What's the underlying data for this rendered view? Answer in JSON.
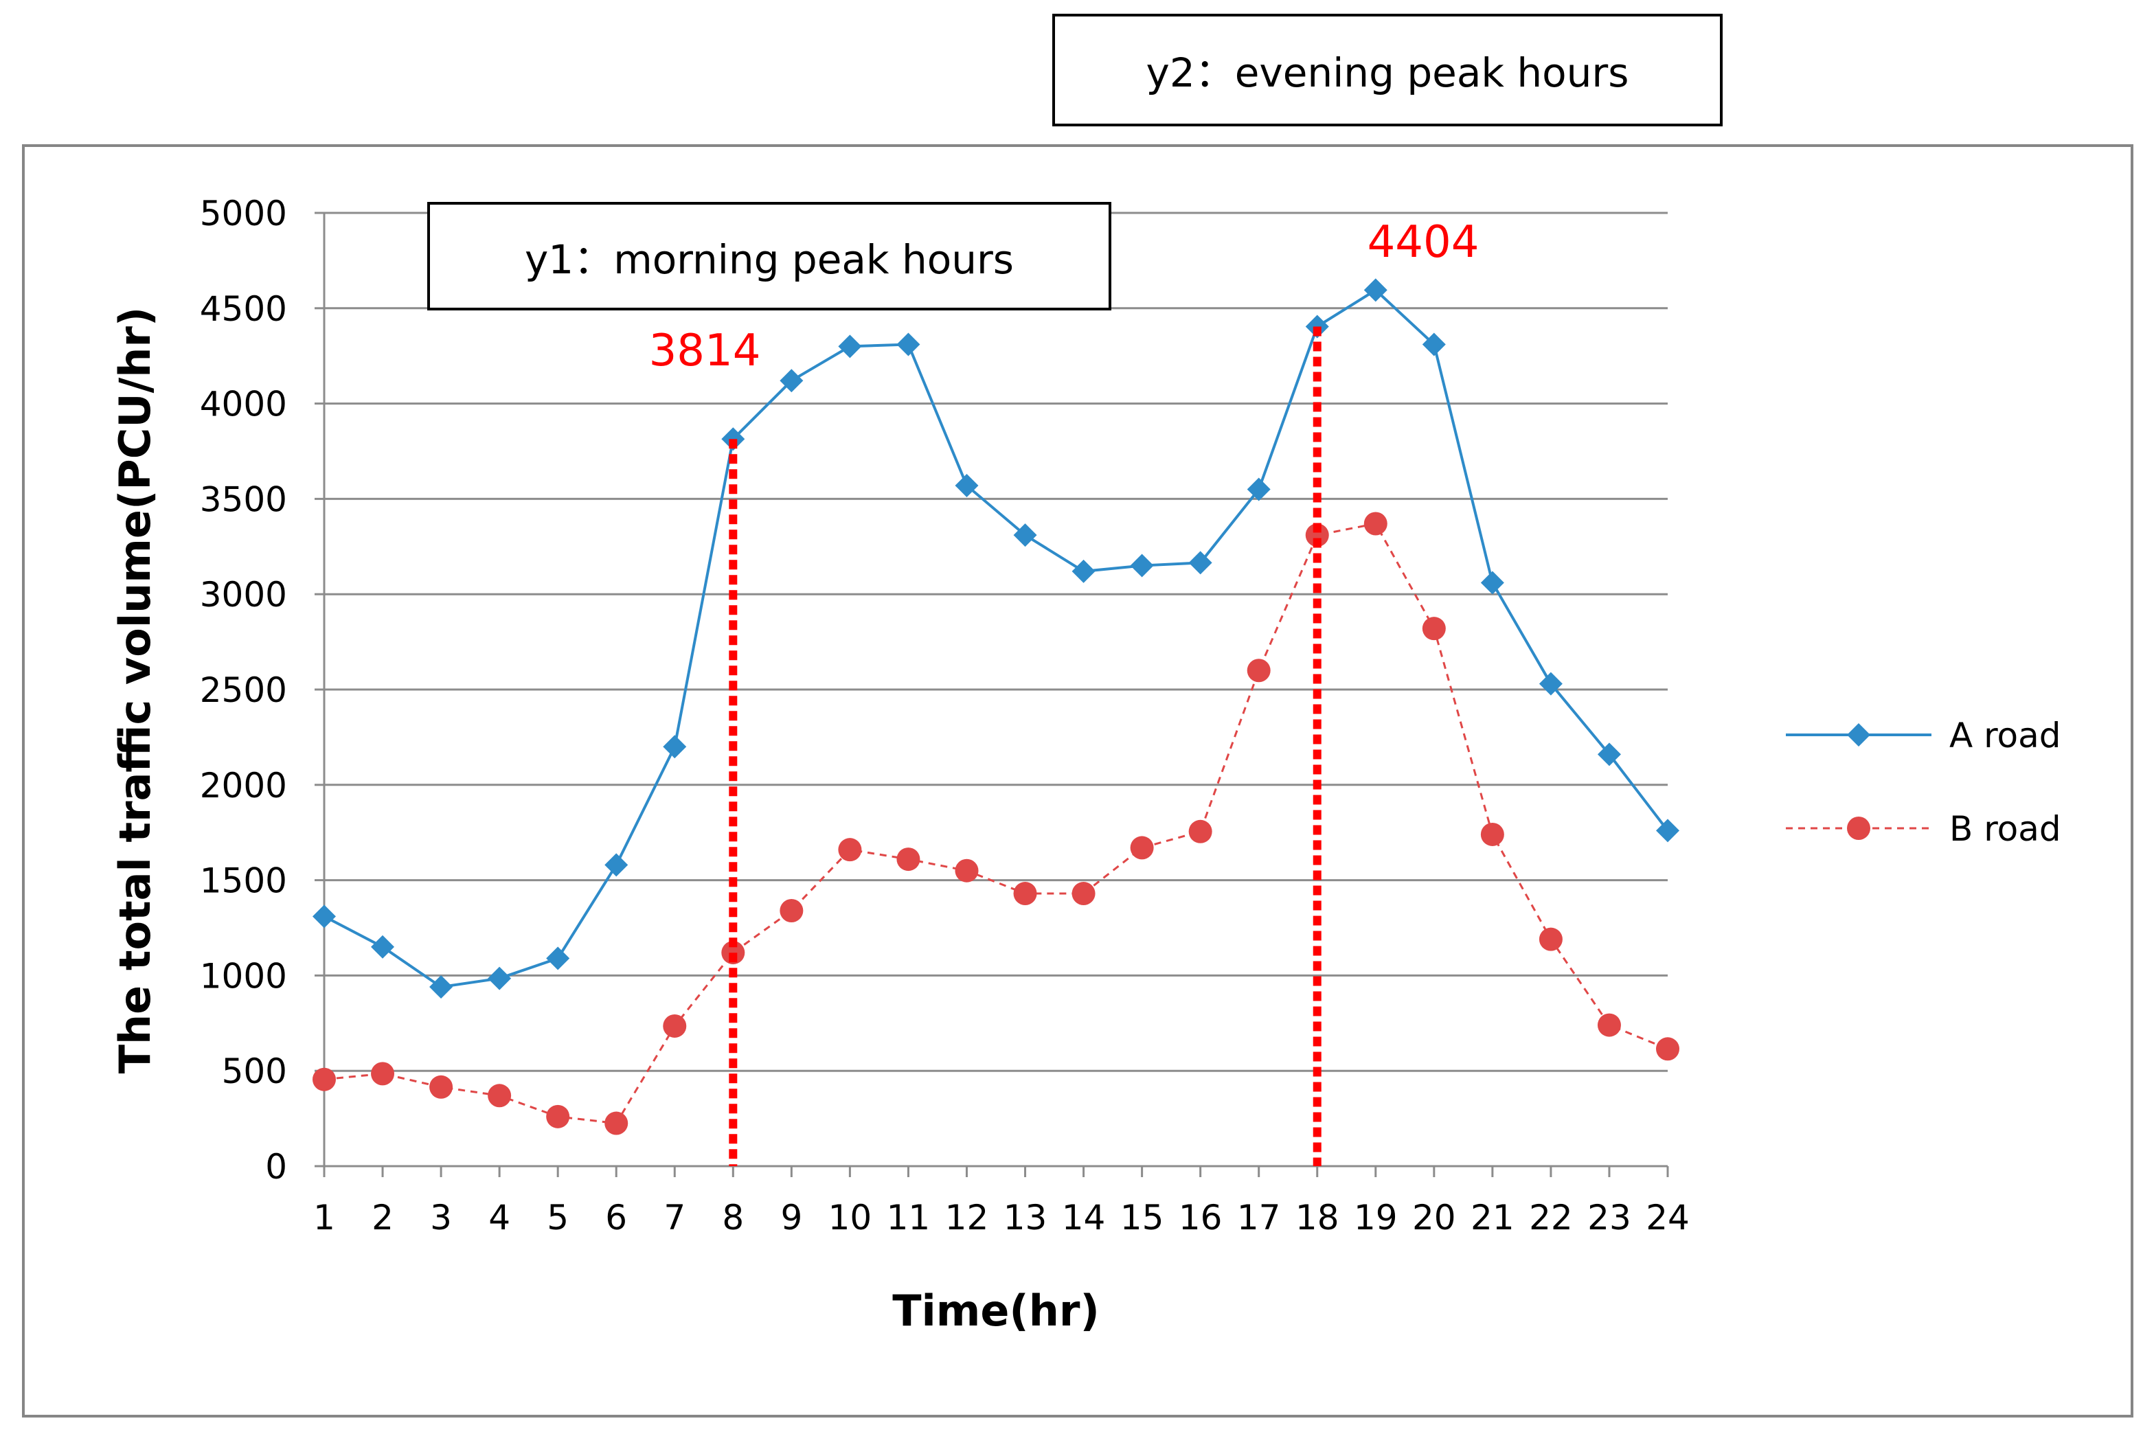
{
  "chart_data": {
    "type": "line",
    "title": "",
    "xlabel": "Time(hr)",
    "ylabel": "The total traffic volume(PCU/hr)",
    "categories": [
      "1",
      "2",
      "3",
      "4",
      "5",
      "6",
      "7",
      "8",
      "9",
      "10",
      "11",
      "12",
      "13",
      "14",
      "15",
      "16",
      "17",
      "18",
      "19",
      "20",
      "21",
      "22",
      "23",
      "24"
    ],
    "ylim": [
      0,
      5000
    ],
    "yticks": [
      "0",
      "500",
      "1000",
      "1500",
      "2000",
      "2500",
      "3000",
      "3500",
      "4000",
      "4500",
      "5000"
    ],
    "grid": true,
    "legend_position": "right",
    "series": [
      {
        "name": "A road",
        "color": "#2e8bc9",
        "marker": "diamond",
        "line_style": "solid",
        "values": [
          1310,
          1150,
          940,
          985,
          1090,
          1580,
          2200,
          3814,
          4120,
          4300,
          4310,
          3570,
          3310,
          3120,
          3150,
          3165,
          3550,
          4404,
          4595,
          4310,
          3060,
          2530,
          2160,
          1760
        ]
      },
      {
        "name": "B road",
        "color": "#e04747",
        "marker": "circle",
        "line_style": "dashed",
        "values": [
          455,
          485,
          415,
          370,
          260,
          225,
          735,
          1120,
          1340,
          1660,
          1610,
          1550,
          1430,
          1430,
          1670,
          1755,
          2600,
          3310,
          3370,
          2820,
          1740,
          1190,
          740,
          615
        ]
      }
    ],
    "annotations": [
      {
        "id": "y1",
        "text": "y1：morning peak hours",
        "x": "8",
        "peak_label": "3814",
        "peak_value": 3814,
        "label_color": "#ff0000",
        "line_color": "#ff0000"
      },
      {
        "id": "y2",
        "text": "y2：evening peak hours",
        "x": "18",
        "peak_label": "4404",
        "peak_value": 4404,
        "label_color": "#ff0000",
        "line_color": "#ff0000"
      }
    ]
  }
}
